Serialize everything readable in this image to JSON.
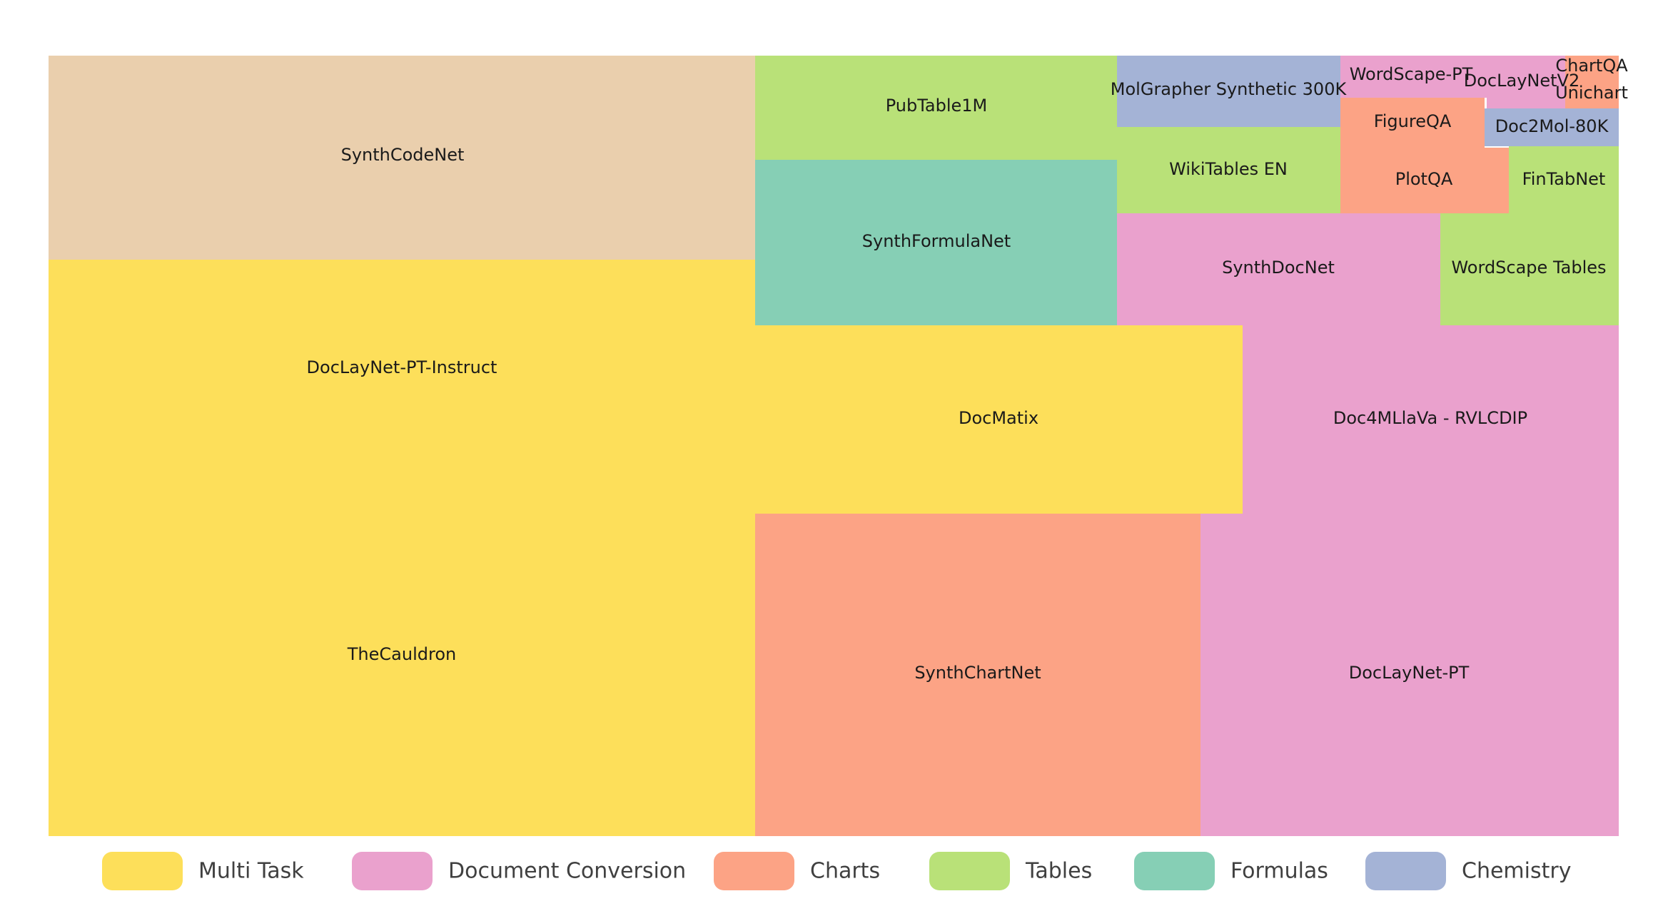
{
  "chart_data": {
    "type": "treemap",
    "title": "",
    "categories": [
      {
        "key": "multi_task",
        "label": "Multi Task",
        "color": "#fddf5a"
      },
      {
        "key": "doc_conversion",
        "label": "Document Conversion",
        "color": "#eaa1cd"
      },
      {
        "key": "charts",
        "label": "Charts",
        "color": "#fca385"
      },
      {
        "key": "tables",
        "label": "Tables",
        "color": "#b9e178"
      },
      {
        "key": "formulas",
        "label": "Formulas",
        "color": "#86cfb5"
      },
      {
        "key": "chemistry",
        "label": "Chemistry",
        "color": "#a4b3d6"
      }
    ],
    "items": [
      {
        "label": "SynthCodeNet",
        "category": "multi_task_code",
        "color": "#eacfad",
        "approx_share": 0.1183
      },
      {
        "label": "DocLayNet-PT-Instruct",
        "category": "multi_task",
        "approx_share": 0.1041
      },
      {
        "label": "TheCauldron",
        "category": "multi_task",
        "approx_share": 0.1861
      },
      {
        "label": "PubTable1M",
        "category": "tables",
        "approx_share": 0.0307
      },
      {
        "label": "SynthFormulaNet",
        "category": "formulas",
        "approx_share": 0.0485
      },
      {
        "label": "MolGrapher Synthetic 300K",
        "category": "chemistry",
        "approx_share": 0.0127
      },
      {
        "label": "WikiTables EN",
        "category": "tables",
        "approx_share": 0.0152
      },
      {
        "label": "WordScape-PT",
        "category": "doc_conversion",
        "approx_share": 0.0051
      },
      {
        "label": "DocLayNetV2",
        "category": "doc_conversion",
        "approx_share": 0.0029
      },
      {
        "label": "ChartQA",
        "category": "charts",
        "approx_share": 0.0012
      },
      {
        "label": "Unichart",
        "category": "charts",
        "approx_share": 0.0012
      },
      {
        "label": "FigureQA",
        "category": "charts",
        "approx_share": 0.0055
      },
      {
        "label": "Doc2Mol-80K",
        "category": "chemistry",
        "approx_share": 0.0032
      },
      {
        "label": "PlotQA",
        "category": "charts",
        "approx_share": 0.0048
      },
      {
        "label": "FinTabNet",
        "category": "tables",
        "approx_share": 0.0056
      },
      {
        "label": "SynthDocNet",
        "category": "doc_conversion",
        "approx_share": 0.0275
      },
      {
        "label": "WordScape Tables",
        "category": "tables",
        "approx_share": 0.0145
      },
      {
        "label": "DocMatix",
        "category": "multi_task",
        "approx_share": 0.0749
      },
      {
        "label": "Doc4MLlaVa - RVLCDIP",
        "category": "doc_conversion",
        "approx_share": 0.0582
      },
      {
        "label": "SynthChartNet",
        "category": "charts",
        "approx_share": 0.1164
      },
      {
        "label": "DocLayNet-PT",
        "category": "doc_conversion",
        "approx_share": 0.1095
      }
    ],
    "legend": {
      "position": "bottom",
      "orientation": "horizontal"
    }
  }
}
